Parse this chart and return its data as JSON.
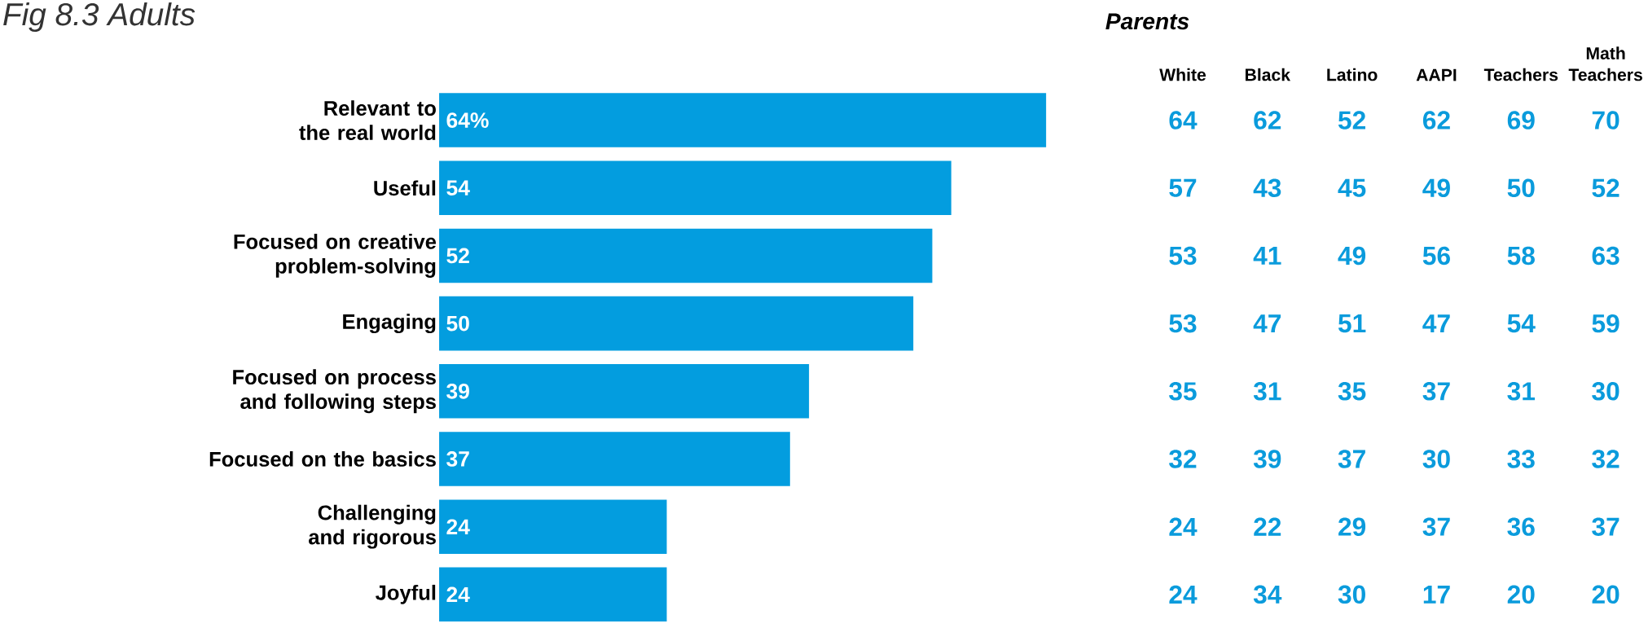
{
  "chart_data": [
    {
      "type": "bar",
      "orientation": "horizontal",
      "title": "Fig 8.3 Adults",
      "categories": [
        "Relevant to the real world",
        "Useful",
        "Focused on creative problem-solving",
        "Engaging",
        "Focused on process and following steps",
        "Focused on the basics",
        "Challenging and rigorous",
        "Joyful"
      ],
      "values": [
        64,
        54,
        52,
        50,
        39,
        37,
        24,
        24
      ],
      "value_labels": [
        "64%",
        "54",
        "52",
        "50",
        "39",
        "37",
        "24",
        "24"
      ],
      "color": "#039ddf"
    },
    {
      "type": "heatmap",
      "title": "Parents",
      "data_labels": true,
      "categories": [
        "White",
        "Black",
        "Latino",
        "AAPI",
        "Teachers",
        "Math Teachers"
      ],
      "y_categories": [
        null,
        null,
        null,
        null,
        null,
        null,
        null,
        null
      ],
      "cells": [
        [
          64,
          62,
          52,
          62,
          69,
          70
        ],
        [
          57,
          43,
          45,
          49,
          50,
          52
        ],
        [
          53,
          41,
          49,
          56,
          58,
          63
        ],
        [
          53,
          47,
          51,
          47,
          54,
          59
        ],
        [
          35,
          31,
          35,
          37,
          31,
          30
        ],
        [
          32,
          39,
          37,
          30,
          33,
          32
        ],
        [
          24,
          22,
          29,
          37,
          36,
          37
        ],
        [
          24,
          34,
          30,
          17,
          20,
          20
        ]
      ]
    }
  ]
}
